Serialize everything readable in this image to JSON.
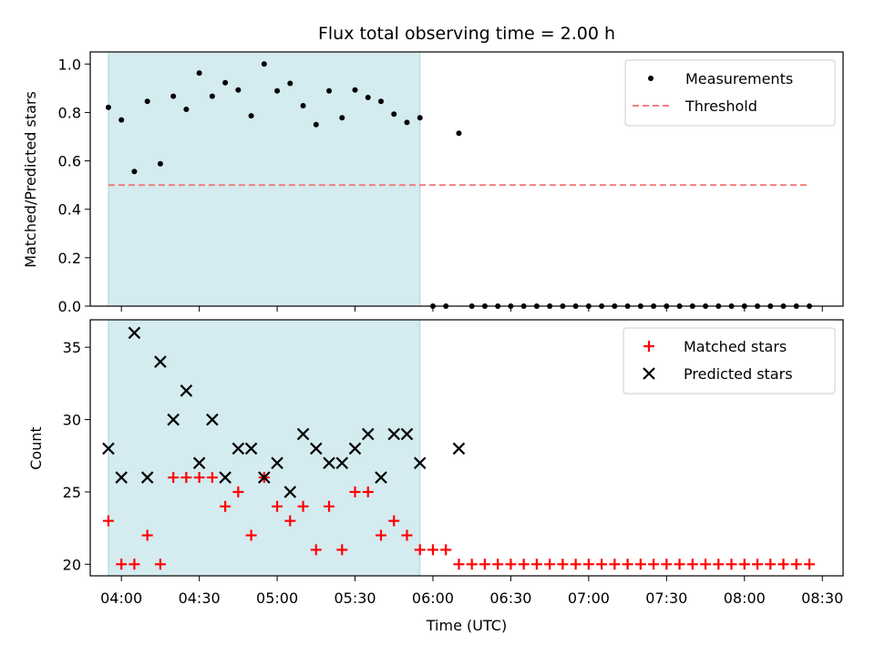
{
  "chart_data": [
    {
      "type": "scatter",
      "title": "Flux total observing time = 2.00 h",
      "ylabel": "Matched/Predicted stars",
      "ylim": [
        0,
        1.05
      ],
      "yticks": [
        0.0,
        0.2,
        0.4,
        0.6,
        0.8,
        1.0
      ],
      "ytick_labels": [
        "0.0",
        "0.2",
        "0.4",
        "0.6",
        "0.8",
        "1.0"
      ],
      "xlim": [
        "03:48",
        "08:38"
      ],
      "shaded_interval": [
        "03:55",
        "05:55"
      ],
      "shade_color": "#d4ebf0",
      "legend_position": "top-right",
      "series": [
        {
          "name": "Measurements",
          "kind": "points",
          "color": "#000000",
          "x": [
            "03:55",
            "04:00",
            "04:05",
            "04:10",
            "04:15",
            "04:20",
            "04:25",
            "04:30",
            "04:35",
            "04:40",
            "04:45",
            "04:50",
            "04:55",
            "05:00",
            "05:05",
            "05:10",
            "05:15",
            "05:20",
            "05:25",
            "05:30",
            "05:35",
            "05:40",
            "05:45",
            "05:50",
            "05:55",
            "06:00",
            "06:05",
            "06:10",
            "06:15",
            "06:20",
            "06:25",
            "06:30",
            "06:35",
            "06:40",
            "06:45",
            "06:50",
            "06:55",
            "07:00",
            "07:05",
            "07:10",
            "07:15",
            "07:20",
            "07:25",
            "07:30",
            "07:35",
            "07:40",
            "07:45",
            "07:50",
            "07:55",
            "08:00",
            "08:05",
            "08:10",
            "08:15",
            "08:20",
            "08:25"
          ],
          "y": [
            0.821,
            0.769,
            0.556,
            0.846,
            0.588,
            0.867,
            0.813,
            0.963,
            0.867,
            0.923,
            0.893,
            0.786,
            1.0,
            0.889,
            0.92,
            0.828,
            0.75,
            0.889,
            0.778,
            0.893,
            0.862,
            0.846,
            0.793,
            0.759,
            0.778,
            0,
            0,
            0.714,
            0,
            0,
            0,
            0,
            0,
            0,
            0,
            0,
            0,
            0,
            0,
            0,
            0,
            0,
            0,
            0,
            0,
            0,
            0,
            0,
            0,
            0,
            0,
            0,
            0,
            0,
            0
          ]
        },
        {
          "name": "Threshold",
          "kind": "dashed-line",
          "color": "#f08080",
          "x": [
            "03:55",
            "08:25"
          ],
          "y": [
            0.5,
            0.5
          ]
        }
      ]
    },
    {
      "type": "scatter",
      "xlabel": "Time (UTC)",
      "ylabel": "Count",
      "ylim": [
        19.2,
        36.9
      ],
      "yticks": [
        20,
        25,
        30,
        35
      ],
      "ytick_labels": [
        "20",
        "25",
        "30",
        "35"
      ],
      "xlim": [
        "03:48",
        "08:38"
      ],
      "xticks": [
        "04:00",
        "04:30",
        "05:00",
        "05:30",
        "06:00",
        "06:30",
        "07:00",
        "07:30",
        "08:00",
        "08:30"
      ],
      "xtick_labels": [
        "04:00",
        "04:30",
        "05:00",
        "05:30",
        "06:00",
        "06:30",
        "07:00",
        "07:30",
        "08:00",
        "08:30"
      ],
      "shaded_interval": [
        "03:55",
        "05:55"
      ],
      "shade_color": "#d4ebf0",
      "legend_position": "top-right",
      "series": [
        {
          "name": "Matched stars",
          "kind": "plus",
          "color": "#ff0000",
          "x": [
            "03:55",
            "04:00",
            "04:05",
            "04:10",
            "04:15",
            "04:20",
            "04:25",
            "04:30",
            "04:35",
            "04:40",
            "04:45",
            "04:50",
            "04:55",
            "05:00",
            "05:05",
            "05:10",
            "05:15",
            "05:20",
            "05:25",
            "05:30",
            "05:35",
            "05:40",
            "05:45",
            "05:50",
            "05:55",
            "06:00",
            "06:05",
            "06:10",
            "06:15",
            "06:20",
            "06:25",
            "06:30",
            "06:35",
            "06:40",
            "06:45",
            "06:50",
            "06:55",
            "07:00",
            "07:05",
            "07:10",
            "07:15",
            "07:20",
            "07:25",
            "07:30",
            "07:35",
            "07:40",
            "07:45",
            "07:50",
            "07:55",
            "08:00",
            "08:05",
            "08:10",
            "08:15",
            "08:20",
            "08:25"
          ],
          "y": [
            23,
            20,
            20,
            22,
            20,
            26,
            26,
            26,
            26,
            24,
            25,
            22,
            26,
            24,
            23,
            24,
            21,
            24,
            21,
            25,
            25,
            22,
            23,
            22,
            21,
            21,
            21,
            20,
            20,
            20,
            20,
            20,
            20,
            20,
            20,
            20,
            20,
            20,
            20,
            20,
            20,
            20,
            20,
            20,
            20,
            20,
            20,
            20,
            20,
            20,
            20,
            20,
            20,
            20,
            20
          ]
        },
        {
          "name": "Predicted stars",
          "kind": "x",
          "color": "#000000",
          "x": [
            "03:55",
            "04:00",
            "04:05",
            "04:10",
            "04:15",
            "04:20",
            "04:25",
            "04:30",
            "04:35",
            "04:40",
            "04:45",
            "04:50",
            "04:55",
            "05:00",
            "05:05",
            "05:10",
            "05:15",
            "05:20",
            "05:25",
            "05:30",
            "05:35",
            "05:40",
            "05:45",
            "05:50",
            "05:55",
            "06:10"
          ],
          "y": [
            28,
            26,
            36,
            26,
            34,
            30,
            32,
            27,
            30,
            26,
            28,
            28,
            26,
            27,
            25,
            29,
            28,
            27,
            27,
            28,
            29,
            26,
            29,
            29,
            27,
            28
          ]
        }
      ]
    }
  ]
}
